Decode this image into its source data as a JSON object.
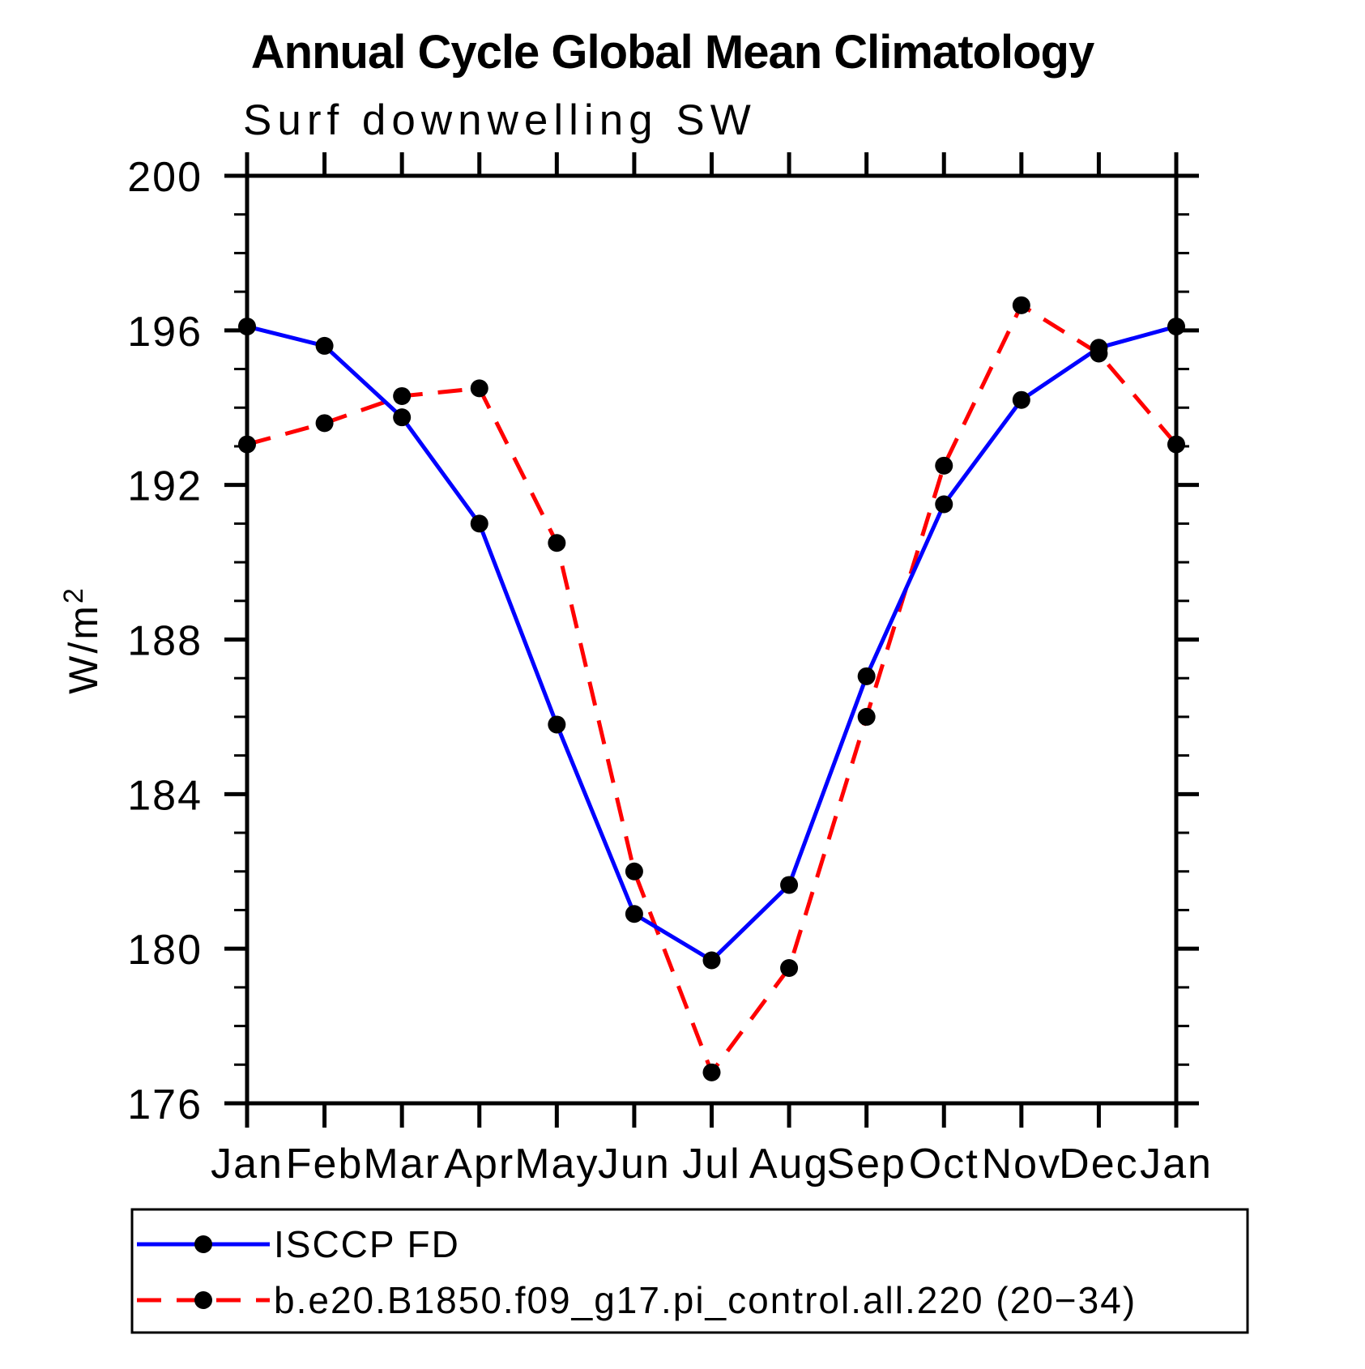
{
  "title": "Annual Cycle Global Mean Climatology",
  "subtitle": "Surf downwelling SW",
  "y_axis_label": "W/m",
  "y_axis_label_exponent": "2",
  "legend": {
    "entries": [
      {
        "label": "ISCCP FD",
        "color": "#0000ff",
        "style": "solid"
      },
      {
        "label": "b.e20.B1850.f09_g17.pi_control.all.220 (20−34)",
        "color": "#ff0000",
        "style": "dashed"
      }
    ]
  },
  "colors": {
    "series1": "#0000ff",
    "series2": "#ff0000",
    "marker": "#000000",
    "axis": "#000000"
  },
  "chart_data": {
    "type": "line",
    "title": "Annual Cycle Global Mean Climatology",
    "subtitle": "Surf downwelling SW",
    "ylabel": "W/m2",
    "x": [
      "Jan",
      "Feb",
      "Mar",
      "Apr",
      "May",
      "Jun",
      "Jul",
      "Aug",
      "Sep",
      "Oct",
      "Nov",
      "Dec",
      "Jan"
    ],
    "series": [
      {
        "name": "ISCCP FD",
        "color": "#0000ff",
        "line_style": "solid",
        "marker": "filled-circle",
        "values": [
          196.1,
          195.6,
          193.75,
          191.0,
          185.8,
          180.9,
          179.7,
          181.65,
          187.05,
          191.5,
          194.2,
          195.55,
          196.1
        ]
      },
      {
        "name": "b.e20.B1850.f09_g17.pi_control.all.220 (20−34)",
        "color": "#ff0000",
        "line_style": "dashed",
        "marker": "filled-circle",
        "values": [
          193.05,
          193.6,
          194.3,
          194.5,
          190.5,
          182.0,
          176.8,
          179.5,
          186.0,
          192.5,
          196.65,
          195.4,
          193.05
        ]
      }
    ],
    "ylim": [
      176,
      200
    ],
    "yticks": [
      176,
      180,
      184,
      188,
      192,
      196,
      200
    ],
    "y_minor_tick_step": 1,
    "grid": false,
    "legend_position": "bottom"
  }
}
